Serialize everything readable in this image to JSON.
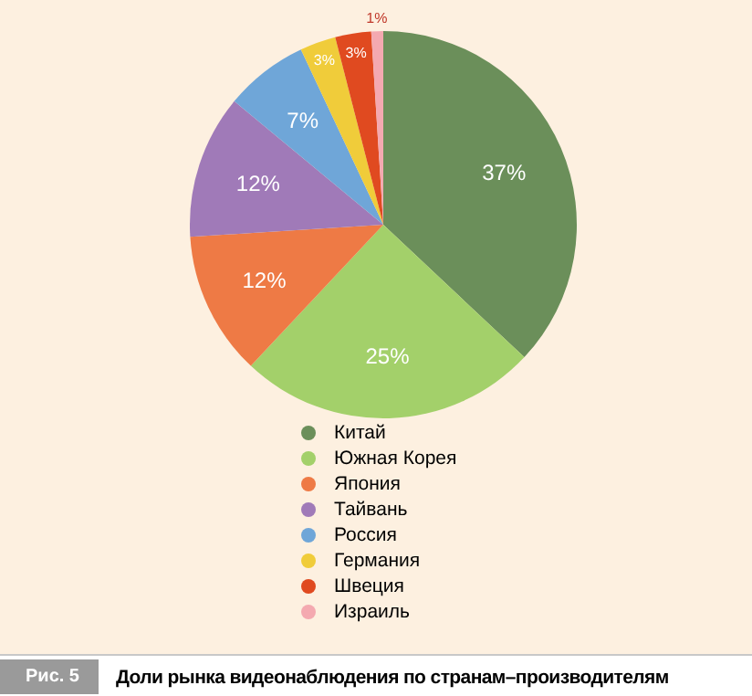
{
  "chart_data": {
    "type": "pie",
    "title": "Доли рынка видеонаблюдения по странам–производителям",
    "annotations": [
      "Рис. 5"
    ],
    "categories": [
      "Китай",
      "Южная Корея",
      "Япония",
      "Тайвань",
      "Россия",
      "Германия",
      "Швеция",
      "Израиль"
    ],
    "values": [
      37,
      25,
      12,
      12,
      7,
      3,
      3,
      1
    ],
    "value_labels": [
      "37%",
      "25%",
      "12%",
      "12%",
      "7%",
      "3%",
      "3%",
      "1%"
    ],
    "colors": [
      "#6b8f5a",
      "#a3d06a",
      "#ee7a45",
      "#a07ab8",
      "#6fa6d8",
      "#f0cc3a",
      "#e04a20",
      "#f4a9b0"
    ],
    "legend": "bottom"
  }
}
